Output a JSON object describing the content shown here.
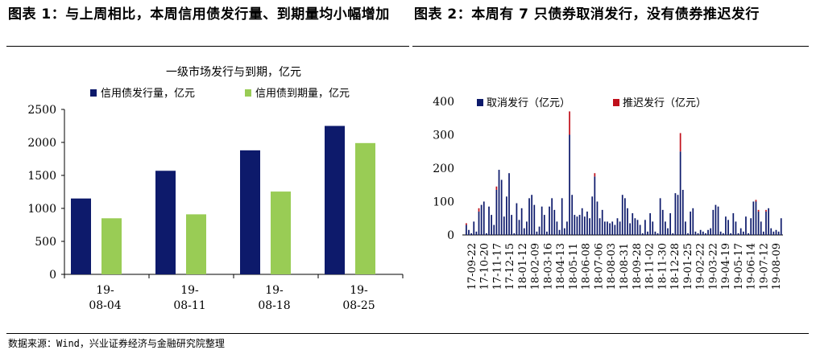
{
  "header": {
    "left_title": "图表 1：与上周相比，本周信用债发行量、到期量均小幅增加",
    "right_title": "图表 2：本周有 7 只债券取消发行，没有债券推迟发行"
  },
  "source": "数据来源：Wind，兴业证券经济与金融研究院整理",
  "colors": {
    "issue": "#0d1a6b",
    "maturity": "#99cc55",
    "cancel": "#0d1a6b",
    "postpone": "#c0101b"
  },
  "chart_data": [
    {
      "type": "bar",
      "title": "一级市场发行与到期，亿元",
      "categories": [
        [
          "19-",
          "08-04"
        ],
        [
          "19-",
          "08-11"
        ],
        [
          "19-",
          "08-18"
        ],
        [
          "19-",
          "08-25"
        ]
      ],
      "series": [
        {
          "name": "信用债发行量，亿元",
          "values": [
            1150,
            1570,
            1880,
            2250
          ]
        },
        {
          "name": "信用债到期量，亿元",
          "values": [
            850,
            910,
            1255,
            1990
          ]
        }
      ],
      "ylim": [
        0,
        2500
      ],
      "yticks": [
        0,
        500,
        1000,
        1500,
        2000,
        2500
      ],
      "legend": "top"
    },
    {
      "type": "bar",
      "stacked": true,
      "series_names": [
        "取消发行（亿元）",
        "推迟发行（亿元）"
      ],
      "xtick_labels": [
        "17-09-22",
        "17-10-20",
        "17-11-17",
        "17-12-15",
        "18-01-12",
        "18-02-09",
        "18-03-16",
        "18-04-13",
        "18-05-11",
        "18-06-08",
        "18-07-06",
        "18-08-03",
        "18-08-31",
        "18-09-28",
        "18-11-02",
        "18-11-30",
        "18-12-28",
        "19-01-25",
        "19-02-22",
        "19-03-22",
        "19-04-19",
        "19-05-17",
        "19-06-14",
        "19-07-12",
        "19-08-09"
      ],
      "cancel": [
        30,
        15,
        5,
        40,
        10,
        70,
        90,
        100,
        5,
        85,
        60,
        30,
        135,
        195,
        165,
        55,
        115,
        185,
        60,
        5,
        95,
        45,
        80,
        20,
        40,
        110,
        120,
        90,
        10,
        25,
        85,
        60,
        10,
        85,
        110,
        75,
        40,
        15,
        110,
        20,
        40,
        300,
        120,
        60,
        55,
        60,
        80,
        55,
        70,
        50,
        115,
        175,
        100,
        50,
        75,
        40,
        40,
        35,
        40,
        30,
        50,
        40,
        120,
        110,
        80,
        35,
        65,
        50,
        45,
        30,
        5,
        45,
        10,
        65,
        40,
        10,
        5,
        110,
        75,
        40,
        20,
        65,
        5,
        125,
        120,
        250,
        135,
        40,
        5,
        70,
        80,
        10,
        5,
        15,
        10,
        5,
        15,
        20,
        75,
        90,
        85,
        10,
        5,
        55,
        45,
        5,
        65,
        40,
        5,
        20,
        10,
        55,
        5,
        50,
        100,
        100,
        70,
        40,
        10,
        70,
        80,
        20,
        10,
        15,
        10,
        50
      ],
      "postpone": [
        5,
        0,
        0,
        0,
        0,
        10,
        0,
        0,
        0,
        0,
        0,
        0,
        10,
        0,
        0,
        0,
        0,
        0,
        0,
        0,
        0,
        0,
        0,
        0,
        0,
        0,
        0,
        0,
        0,
        0,
        0,
        0,
        0,
        0,
        0,
        0,
        0,
        0,
        0,
        0,
        0,
        70,
        0,
        0,
        0,
        0,
        0,
        0,
        0,
        0,
        0,
        10,
        0,
        0,
        0,
        0,
        0,
        0,
        0,
        0,
        0,
        0,
        0,
        0,
        0,
        0,
        0,
        0,
        0,
        0,
        0,
        0,
        0,
        0,
        0,
        0,
        0,
        0,
        0,
        0,
        0,
        0,
        0,
        0,
        0,
        55,
        0,
        0,
        0,
        0,
        0,
        0,
        0,
        0,
        0,
        0,
        0,
        0,
        0,
        0,
        0,
        0,
        0,
        0,
        0,
        0,
        0,
        0,
        0,
        0,
        0,
        0,
        0,
        0,
        0,
        5,
        5,
        0,
        0,
        5,
        0,
        0,
        0,
        0,
        0,
        0
      ],
      "ylim": [
        0,
        400
      ],
      "yticks": [
        0,
        100,
        200,
        300,
        400
      ],
      "legend": "top"
    }
  ]
}
